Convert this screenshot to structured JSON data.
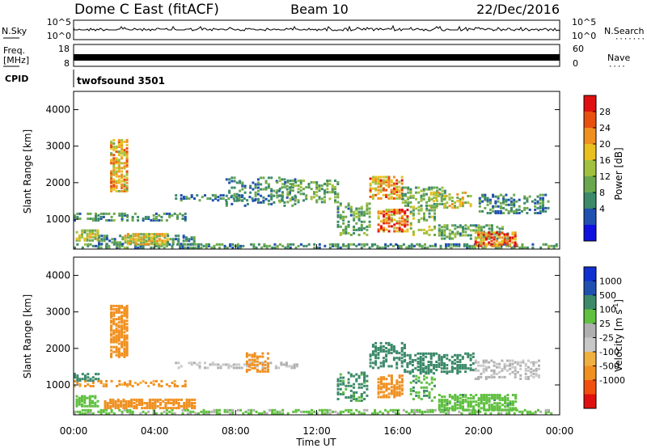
{
  "header": {
    "station": "Dome C East (fitACF)",
    "beam": "Beam 10",
    "date": "22/Dec/2016"
  },
  "noise_panel": {
    "left_label": "N.Sky",
    "right_label": "N.Search",
    "right_dots": "·······",
    "ticks": [
      "10^5",
      "10^0"
    ]
  },
  "freq_panel": {
    "left_label_1": "Freq.",
    "left_label_2": "[MHz]",
    "left_ticks": [
      "18",
      "8"
    ],
    "right_ticks": [
      "60",
      "0"
    ],
    "right_label": "Nave",
    "right_dots": "····"
  },
  "cpid": {
    "label": "CPID",
    "program": "twofsound 3501"
  },
  "colors": {
    "power_scale": [
      "#1010e0",
      "#2050b0",
      "#3d8a6a",
      "#6aa84f",
      "#a0c040",
      "#e8c020",
      "#f09020",
      "#e85010",
      "#e01010"
    ],
    "velocity_scale": [
      "#e01010",
      "#f05010",
      "#f09020",
      "#f0b040",
      "#c8c8c8",
      "#b0b0b0",
      "#60c040",
      "#3d8a6a",
      "#2050b0",
      "#1030d0"
    ]
  },
  "chart_data": [
    {
      "type": "heatmap",
      "name": "power",
      "ylabel": "Slant Range [km]",
      "yticks": [
        "1000",
        "2000",
        "3000",
        "4000"
      ],
      "ylim": [
        180,
        4500
      ],
      "xlim": [
        0,
        24
      ],
      "colorbar": {
        "label": "Power [dB]",
        "ticks": [
          "4",
          "8",
          "12",
          "16",
          "20",
          "24",
          "28"
        ],
        "range": [
          0,
          32
        ]
      },
      "features": [
        {
          "t0": 0.0,
          "t1": 24.0,
          "r0": 250,
          "r1": 350,
          "value": 10,
          "density": 0.5
        },
        {
          "t0": 0.1,
          "t1": 1.2,
          "r0": 450,
          "r1": 750,
          "value": 16,
          "density": 0.7
        },
        {
          "t0": 1.2,
          "t1": 2.4,
          "r0": 350,
          "r1": 600,
          "value": 10,
          "density": 0.5
        },
        {
          "t0": 2.5,
          "t1": 4.6,
          "r0": 350,
          "r1": 650,
          "value": 18,
          "density": 0.8
        },
        {
          "t0": 4.6,
          "t1": 6.0,
          "r0": 350,
          "r1": 600,
          "value": 9,
          "density": 0.4
        },
        {
          "t0": 0.0,
          "t1": 5.5,
          "r0": 1000,
          "r1": 1200,
          "value": 10,
          "density": 0.4
        },
        {
          "t0": 5.0,
          "t1": 9.0,
          "r0": 1550,
          "r1": 1700,
          "value": 8,
          "density": 0.4
        },
        {
          "t0": 1.8,
          "t1": 2.6,
          "r0": 1800,
          "r1": 3200,
          "value": 20,
          "density": 0.7
        },
        {
          "t0": 7.5,
          "t1": 11.0,
          "r0": 1400,
          "r1": 2200,
          "value": 9,
          "density": 0.25
        },
        {
          "t0": 10.0,
          "t1": 13.0,
          "r0": 1500,
          "r1": 2100,
          "value": 12,
          "density": 0.35
        },
        {
          "t0": 13.0,
          "t1": 14.6,
          "r0": 600,
          "r1": 1500,
          "value": 12,
          "density": 0.35
        },
        {
          "t0": 14.6,
          "t1": 16.2,
          "r0": 1600,
          "r1": 2200,
          "value": 22,
          "density": 0.55
        },
        {
          "t0": 15.0,
          "t1": 16.5,
          "r0": 700,
          "r1": 1300,
          "value": 24,
          "density": 0.6
        },
        {
          "t0": 16.2,
          "t1": 18.4,
          "r0": 1400,
          "r1": 1900,
          "value": 12,
          "density": 0.4
        },
        {
          "t0": 17.6,
          "t1": 19.6,
          "r0": 1350,
          "r1": 1800,
          "value": 18,
          "density": 0.45
        },
        {
          "t0": 18.0,
          "t1": 21.5,
          "r0": 500,
          "r1": 900,
          "value": 12,
          "density": 0.4
        },
        {
          "t0": 19.8,
          "t1": 21.8,
          "r0": 300,
          "r1": 700,
          "value": 25,
          "density": 0.65
        },
        {
          "t0": 20.0,
          "t1": 23.5,
          "r0": 1200,
          "r1": 1700,
          "value": 9,
          "density": 0.35
        },
        {
          "t0": 16.6,
          "t1": 17.8,
          "r0": 600,
          "r1": 1400,
          "value": 14,
          "density": 0.3
        }
      ]
    },
    {
      "type": "heatmap",
      "name": "velocity",
      "ylabel": "Slant Range [km]",
      "yticks": [
        "1000",
        "2000",
        "3000",
        "4000"
      ],
      "ylim": [
        180,
        4500
      ],
      "xlim": [
        0,
        24
      ],
      "xticks": [
        "00:00",
        "04:00",
        "08:00",
        "12:00",
        "16:00",
        "20:00",
        "00:00"
      ],
      "xlabel": "Time UT",
      "colorbar": {
        "label": "Velocity [m s",
        "label_sup": "-1",
        "label_end": "]",
        "ticks": [
          "1000",
          "500",
          "100",
          "25",
          "-25",
          "-100",
          "-500",
          "-1000"
        ]
      },
      "features": [
        {
          "t0": 0.0,
          "t1": 24.0,
          "r0": 250,
          "r1": 350,
          "value": 30,
          "density": 0.45
        },
        {
          "t0": 0.1,
          "t1": 1.2,
          "r0": 450,
          "r1": 750,
          "value": 60,
          "density": 0.7
        },
        {
          "t0": 1.5,
          "t1": 6.0,
          "r0": 400,
          "r1": 650,
          "value": -150,
          "density": 0.75
        },
        {
          "t0": 0.0,
          "t1": 5.5,
          "r0": 1000,
          "r1": 1150,
          "value": -120,
          "density": 0.4
        },
        {
          "t0": 0.0,
          "t1": 1.2,
          "r0": 1150,
          "r1": 1350,
          "value": 150,
          "density": 0.5
        },
        {
          "t0": 1.8,
          "t1": 2.6,
          "r0": 1800,
          "r1": 3200,
          "value": -250,
          "density": 0.7
        },
        {
          "t0": 5.0,
          "t1": 11.0,
          "r0": 1500,
          "r1": 1650,
          "value": 0,
          "density": 0.35
        },
        {
          "t0": 8.5,
          "t1": 9.6,
          "r0": 1400,
          "r1": 1900,
          "value": -200,
          "density": 0.5
        },
        {
          "t0": 13.0,
          "t1": 14.5,
          "r0": 600,
          "r1": 1400,
          "value": 120,
          "density": 0.35
        },
        {
          "t0": 14.6,
          "t1": 16.4,
          "r0": 1500,
          "r1": 2200,
          "value": 150,
          "density": 0.45
        },
        {
          "t0": 15.0,
          "t1": 16.3,
          "r0": 700,
          "r1": 1300,
          "value": -220,
          "density": 0.55
        },
        {
          "t0": 16.3,
          "t1": 19.8,
          "r0": 1350,
          "r1": 1900,
          "value": 350,
          "density": 0.45
        },
        {
          "t0": 18.0,
          "t1": 21.8,
          "r0": 350,
          "r1": 800,
          "value": 80,
          "density": 0.65
        },
        {
          "t0": 19.8,
          "t1": 23.0,
          "r0": 1200,
          "r1": 1700,
          "value": 0,
          "density": 0.35
        },
        {
          "t0": 16.6,
          "t1": 17.8,
          "r0": 600,
          "r1": 1300,
          "value": 100,
          "density": 0.3
        }
      ]
    }
  ]
}
